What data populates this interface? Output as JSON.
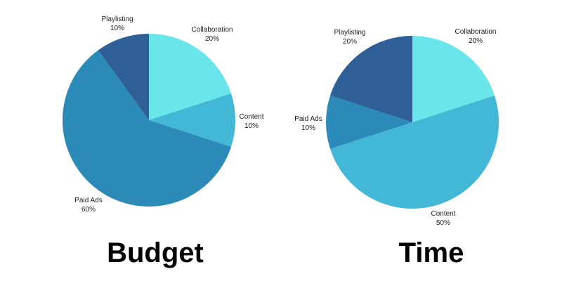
{
  "chart_data": [
    {
      "type": "pie",
      "title": "Budget",
      "slices": [
        {
          "label": "Collaboration",
          "value": 20,
          "value_label": "20%",
          "color": "#6ae5e9"
        },
        {
          "label": "Content",
          "value": 10,
          "value_label": "10%",
          "color": "#42b7d6"
        },
        {
          "label": "Paid Ads",
          "value": 60,
          "value_label": "60%",
          "color": "#2b8ab8"
        },
        {
          "label": "Playlisting",
          "value": 10,
          "value_label": "10%",
          "color": "#2e5f97"
        }
      ]
    },
    {
      "type": "pie",
      "title": "Time",
      "slices": [
        {
          "label": "Collaboration",
          "value": 20,
          "value_label": "20%",
          "color": "#6ae5e9"
        },
        {
          "label": "Content",
          "value": 50,
          "value_label": "50%",
          "color": "#42b7d6"
        },
        {
          "label": "Paid Ads",
          "value": 10,
          "value_label": "10%",
          "color": "#2b8ab8"
        },
        {
          "label": "Playlisting",
          "value": 20,
          "value_label": "20%",
          "color": "#2e5f97"
        }
      ]
    }
  ]
}
